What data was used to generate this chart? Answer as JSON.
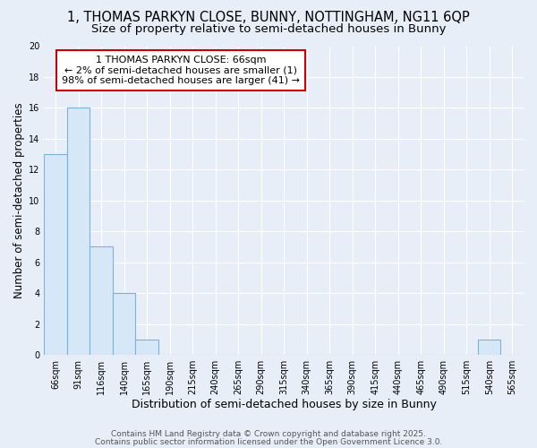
{
  "title": "1, THOMAS PARKYN CLOSE, BUNNY, NOTTINGHAM, NG11 6QP",
  "subtitle": "Size of property relative to semi-detached houses in Bunny",
  "xlabel": "Distribution of semi-detached houses by size in Bunny",
  "ylabel": "Number of semi-detached properties",
  "categories": [
    "66sqm",
    "91sqm",
    "116sqm",
    "140sqm",
    "165sqm",
    "190sqm",
    "215sqm",
    "240sqm",
    "265sqm",
    "290sqm",
    "315sqm",
    "340sqm",
    "365sqm",
    "390sqm",
    "415sqm",
    "440sqm",
    "465sqm",
    "490sqm",
    "515sqm",
    "540sqm",
    "565sqm"
  ],
  "values": [
    13,
    16,
    7,
    4,
    1,
    0,
    0,
    0,
    0,
    0,
    0,
    0,
    0,
    0,
    0,
    0,
    0,
    0,
    0,
    1,
    0
  ],
  "bar_color": "#d6e8f7",
  "bar_edge_color": "#7ab3d9",
  "annotation_text": "1 THOMAS PARKYN CLOSE: 66sqm\n← 2% of semi-detached houses are smaller (1)\n98% of semi-detached houses are larger (41) →",
  "annotation_box_color": "#ffffff",
  "annotation_box_edge_color": "#cc0000",
  "ylim": [
    0,
    20
  ],
  "yticks": [
    0,
    2,
    4,
    6,
    8,
    10,
    12,
    14,
    16,
    18,
    20
  ],
  "background_color": "#e8eef8",
  "grid_color": "#ffffff",
  "footer_line1": "Contains HM Land Registry data © Crown copyright and database right 2025.",
  "footer_line2": "Contains public sector information licensed under the Open Government Licence 3.0.",
  "title_fontsize": 10.5,
  "subtitle_fontsize": 9.5,
  "xlabel_fontsize": 9,
  "ylabel_fontsize": 8.5,
  "tick_fontsize": 7,
  "annotation_fontsize": 8,
  "footer_fontsize": 6.5
}
